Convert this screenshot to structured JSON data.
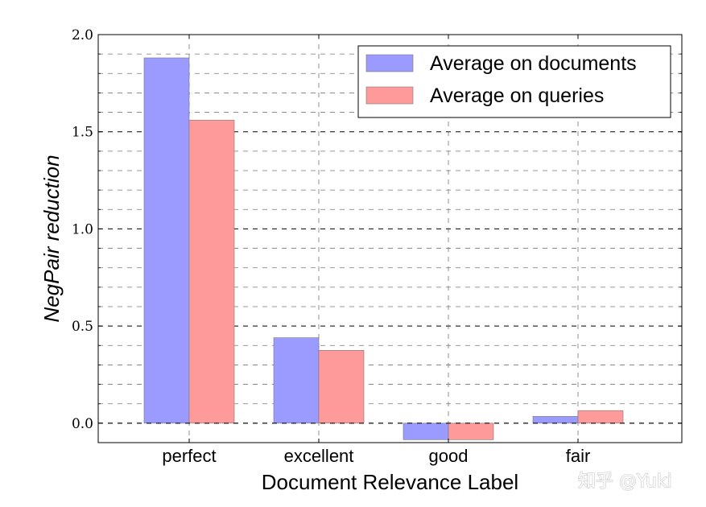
{
  "chart_data": {
    "type": "bar",
    "title": "",
    "xlabel": "Document Relevance Label",
    "ylabel": "NegPair reduction",
    "categories": [
      "perfect",
      "excellent",
      "good",
      "fair"
    ],
    "series": [
      {
        "name": "Average on documents",
        "color": "#9a9aff",
        "values": [
          1.88,
          0.44,
          -0.085,
          0.035
        ]
      },
      {
        "name": "Average on queries",
        "color": "#ff9a9a",
        "values": [
          1.56,
          0.375,
          -0.085,
          0.065
        ]
      }
    ],
    "ylim": [
      -0.1,
      2.0
    ],
    "yticks": [
      "0.0",
      "0.5",
      "1.0",
      "1.5",
      "2.0"
    ],
    "grid": true,
    "legend_position": "top-right"
  },
  "watermark": "知乎 @Yuki"
}
